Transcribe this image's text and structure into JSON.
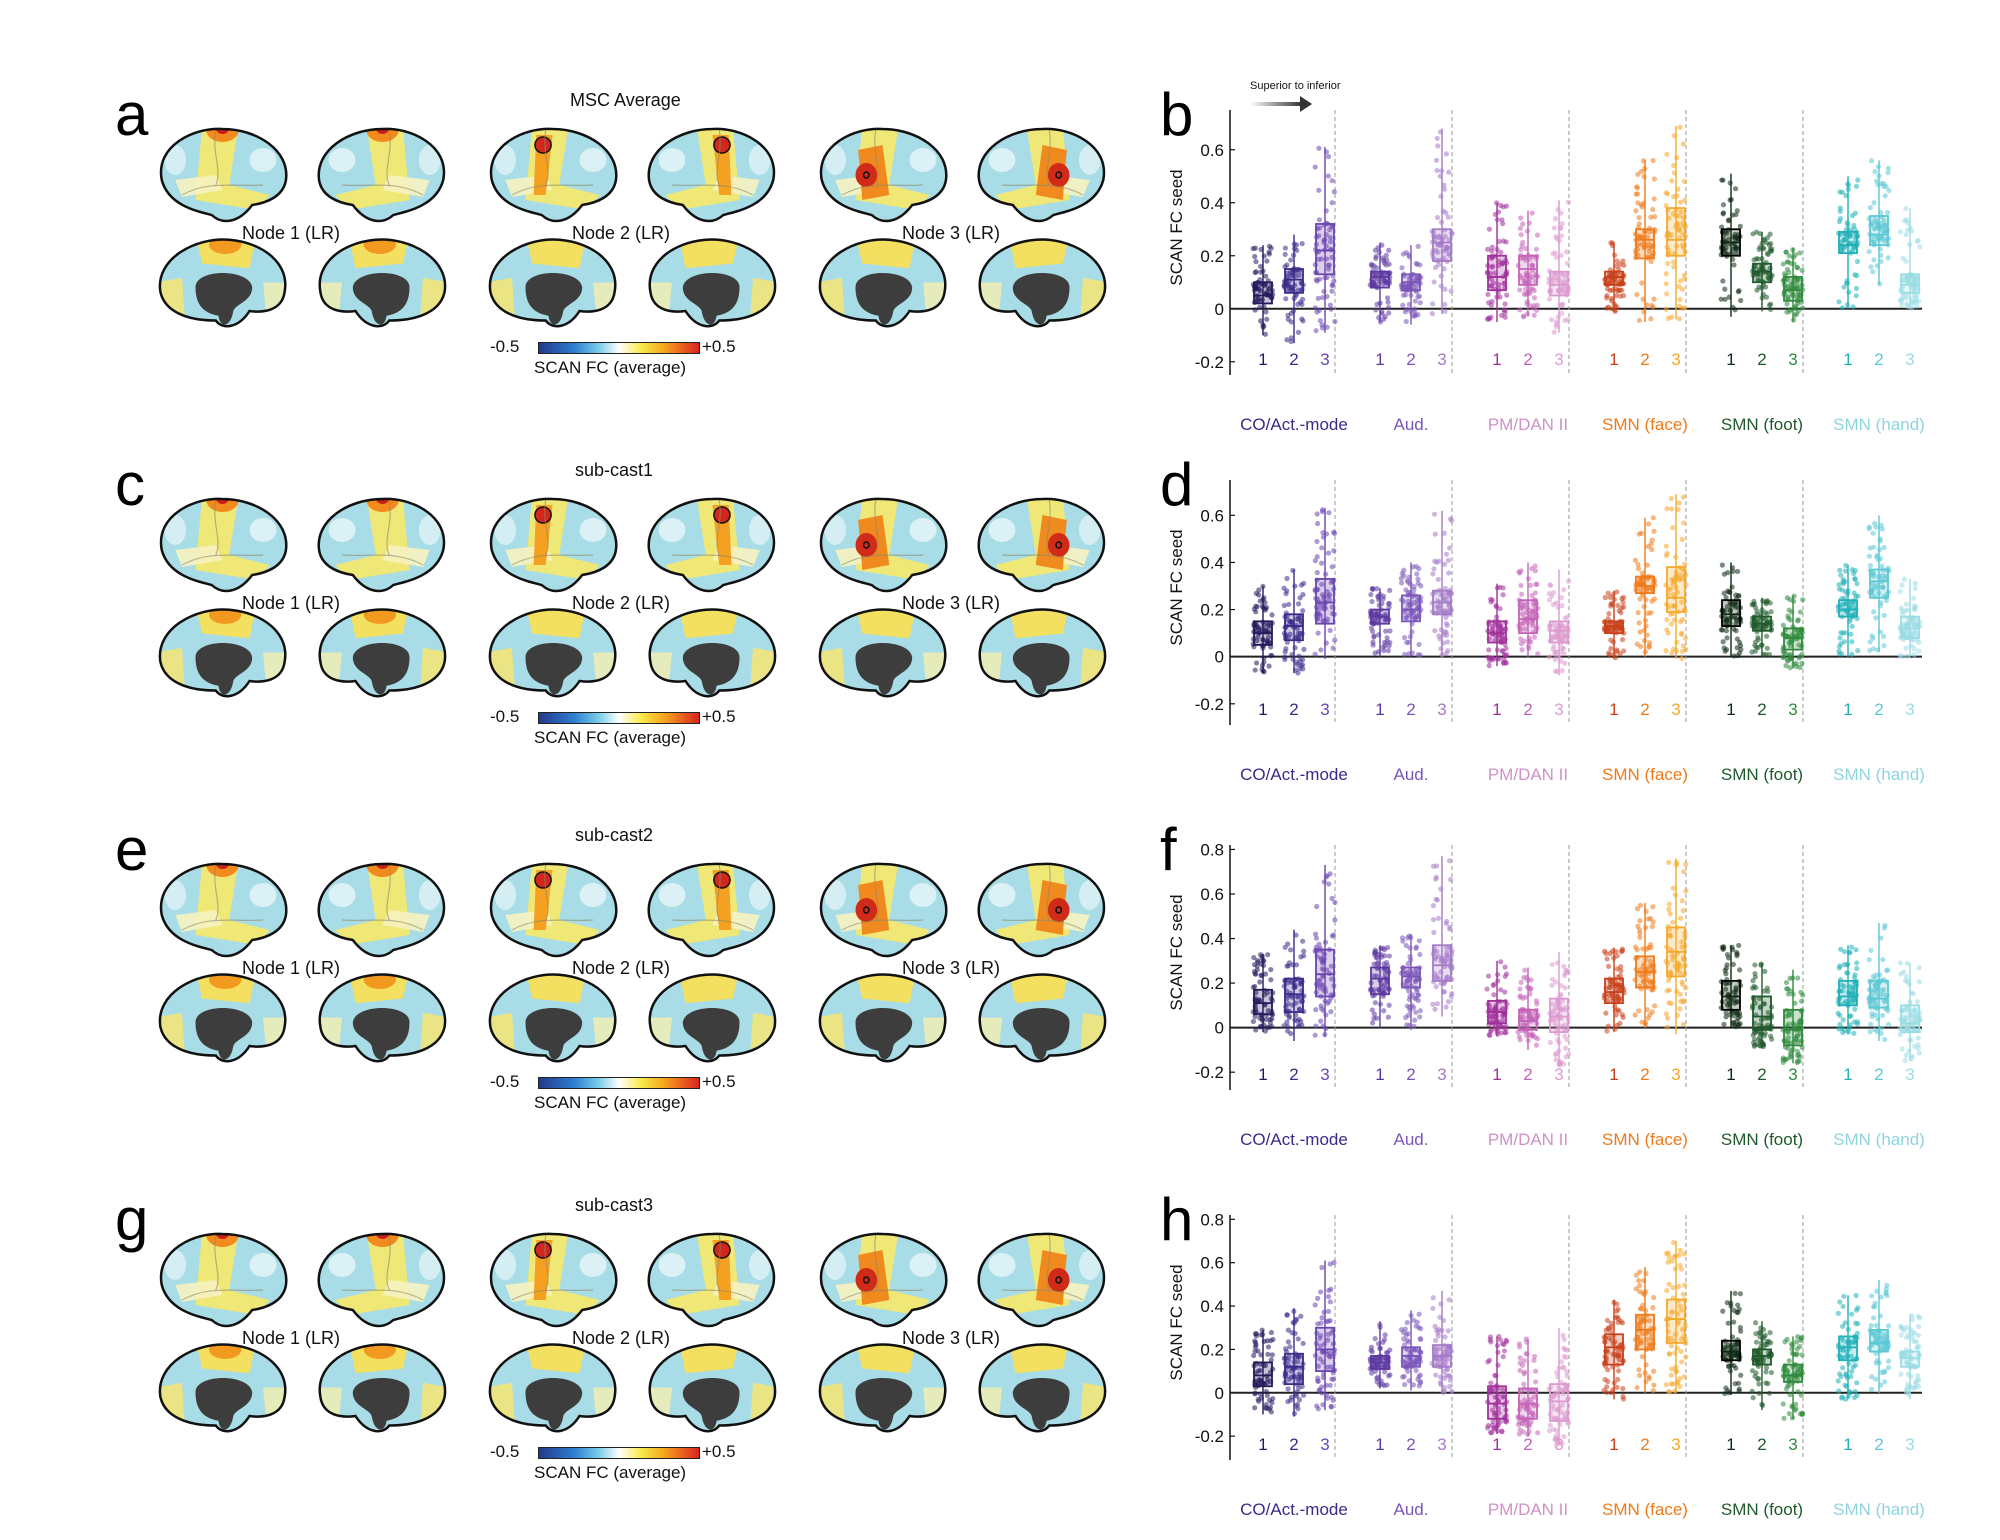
{
  "figure": {
    "panels_brain": [
      {
        "letter": "a",
        "title": "MSC Average",
        "nodes": [
          "Node 1 (LR)",
          "Node 2 (LR)",
          "Node 3 (LR)"
        ]
      },
      {
        "letter": "c",
        "title": "sub-cast1",
        "nodes": [
          "Node 1 (LR)",
          "Node 2 (LR)",
          "Node 3 (LR)"
        ]
      },
      {
        "letter": "e",
        "title": "sub-cast2",
        "nodes": [
          "Node 1 (LR)",
          "Node 2 (LR)",
          "Node 3 (LR)"
        ]
      },
      {
        "letter": "g",
        "title": "sub-cast3",
        "nodes": [
          "Node 1 (LR)",
          "Node 2 (LR)",
          "Node 3 (LR)"
        ]
      }
    ],
    "colorbar": {
      "min": "-0.5",
      "max": "+0.5",
      "title": "SCAN FC (average)"
    },
    "arrow_annotation": "Superior to inferior",
    "colors": {
      "co": [
        "#231a5c",
        "#3a2a8a",
        "#6a45b0"
      ],
      "aud": [
        "#5d38a0",
        "#7a55b8",
        "#a57ac8"
      ],
      "pm": [
        "#a0309a",
        "#c464b8",
        "#dc9ad0"
      ],
      "face": [
        "#c8401a",
        "#ee7a1a",
        "#f5a82a"
      ],
      "foot": [
        "#0f2a14",
        "#1f5a2a",
        "#2e8a3c"
      ],
      "hand": [
        "#20b0b8",
        "#5cc8d4",
        "#9adce4"
      ],
      "label": [
        "#3a2a8a",
        "#7a55b8",
        "#d090c8",
        "#ee7a1a",
        "#1f5a2a",
        "#8ed4e0"
      ]
    }
  },
  "chart_data": [
    {
      "panel": "b",
      "type": "box",
      "ylabel": "SCAN FC seed",
      "ylim": [
        -0.25,
        0.75
      ],
      "yticks": [
        -0.2,
        0,
        0.2,
        0.4,
        0.6
      ],
      "ytick_labels": [
        "-0.2",
        "0",
        "0.2",
        "0.4",
        "0.6"
      ],
      "groups": [
        "CO/Act.-mode",
        "Aud.",
        "PM/DAN II",
        "SMN (face)",
        "SMN (foot)",
        "SMN (hand)"
      ],
      "subcategories": [
        "1",
        "2",
        "3"
      ],
      "boxes": [
        [
          [
            0.02,
            0.05,
            0.1,
            -0.1,
            0.24
          ],
          [
            0.06,
            0.11,
            0.15,
            -0.13,
            0.28
          ],
          [
            0.13,
            0.22,
            0.32,
            -0.09,
            0.61
          ]
        ],
        [
          [
            0.08,
            0.12,
            0.14,
            -0.05,
            0.25
          ],
          [
            0.07,
            0.1,
            0.13,
            -0.06,
            0.24
          ],
          [
            0.18,
            0.25,
            0.3,
            -0.02,
            0.68
          ]
        ],
        [
          [
            0.07,
            0.12,
            0.2,
            -0.05,
            0.4
          ],
          [
            0.09,
            0.15,
            0.2,
            -0.03,
            0.37
          ],
          [
            0.05,
            0.09,
            0.14,
            -0.09,
            0.41
          ]
        ],
        [
          [
            0.09,
            0.12,
            0.14,
            -0.01,
            0.25
          ],
          [
            0.19,
            0.26,
            0.3,
            -0.05,
            0.56
          ],
          [
            0.2,
            0.26,
            0.38,
            -0.04,
            0.69
          ]
        ],
        [
          [
            0.2,
            0.25,
            0.3,
            -0.03,
            0.51
          ],
          [
            0.1,
            0.14,
            0.17,
            -0.01,
            0.29
          ],
          [
            0.03,
            0.07,
            0.12,
            -0.05,
            0.23
          ]
        ],
        [
          [
            0.21,
            0.24,
            0.29,
            0.0,
            0.5
          ],
          [
            0.24,
            0.28,
            0.35,
            0.09,
            0.56
          ],
          [
            0.06,
            0.09,
            0.13,
            0.0,
            0.38
          ]
        ]
      ]
    },
    {
      "panel": "d",
      "type": "box",
      "ylabel": "SCAN FC seed",
      "ylim": [
        -0.29,
        0.75
      ],
      "yticks": [
        -0.2,
        0,
        0.2,
        0.4,
        0.6
      ],
      "ytick_labels": [
        "-0.2",
        "0",
        "0.2",
        "0.4",
        "0.6"
      ],
      "groups": [
        "CO/Act.-mode",
        "Aud.",
        "PM/DAN II",
        "SMN (face)",
        "SMN (foot)",
        "SMN (hand)"
      ],
      "subcategories": [
        "1",
        "2",
        "3"
      ],
      "boxes": [
        [
          [
            0.05,
            0.1,
            0.15,
            -0.07,
            0.3
          ],
          [
            0.07,
            0.13,
            0.18,
            -0.07,
            0.37
          ],
          [
            0.14,
            0.23,
            0.33,
            -0.01,
            0.63
          ]
        ],
        [
          [
            0.14,
            0.17,
            0.2,
            0.0,
            0.29
          ],
          [
            0.15,
            0.2,
            0.26,
            0.0,
            0.4
          ],
          [
            0.18,
            0.23,
            0.28,
            0.0,
            0.62
          ]
        ],
        [
          [
            0.06,
            0.1,
            0.15,
            -0.04,
            0.31
          ],
          [
            0.1,
            0.16,
            0.24,
            0.0,
            0.4
          ],
          [
            0.06,
            0.11,
            0.15,
            -0.08,
            0.37
          ]
        ],
        [
          [
            0.1,
            0.13,
            0.15,
            -0.01,
            0.28
          ],
          [
            0.27,
            0.3,
            0.34,
            0.0,
            0.59
          ],
          [
            0.19,
            0.25,
            0.38,
            -0.01,
            0.69
          ]
        ],
        [
          [
            0.13,
            0.18,
            0.24,
            0.0,
            0.4
          ],
          [
            0.11,
            0.14,
            0.17,
            0.0,
            0.25
          ],
          [
            0.03,
            0.08,
            0.12,
            -0.05,
            0.26
          ]
        ],
        [
          [
            0.17,
            0.2,
            0.24,
            0.0,
            0.39
          ],
          [
            0.25,
            0.32,
            0.37,
            0.02,
            0.6
          ],
          [
            0.08,
            0.12,
            0.17,
            0.0,
            0.33
          ]
        ]
      ]
    },
    {
      "panel": "f",
      "type": "box",
      "ylabel": "SCAN FC seed",
      "ylim": [
        -0.28,
        0.82
      ],
      "yticks": [
        -0.2,
        0,
        0.2,
        0.4,
        0.6,
        0.8
      ],
      "ytick_labels": [
        "-0.2",
        "0",
        "0.2",
        "0.4",
        "0.6",
        "0.8"
      ],
      "groups": [
        "CO/Act.-mode",
        "Aud.",
        "PM/DAN II",
        "SMN (face)",
        "SMN (foot)",
        "SMN (hand)"
      ],
      "subcategories": [
        "1",
        "2",
        "3"
      ],
      "boxes": [
        [
          [
            0.06,
            0.11,
            0.17,
            -0.02,
            0.33
          ],
          [
            0.07,
            0.15,
            0.22,
            -0.06,
            0.44
          ],
          [
            0.14,
            0.24,
            0.35,
            -0.04,
            0.73
          ]
        ],
        [
          [
            0.15,
            0.22,
            0.27,
            0.0,
            0.37
          ],
          [
            0.18,
            0.23,
            0.27,
            -0.01,
            0.42
          ],
          [
            0.21,
            0.28,
            0.37,
            0.05,
            0.77
          ]
        ],
        [
          [
            0.02,
            0.07,
            0.12,
            -0.04,
            0.3
          ],
          [
            -0.01,
            0.03,
            0.08,
            -0.1,
            0.27
          ],
          [
            -0.02,
            0.05,
            0.13,
            -0.17,
            0.34
          ]
        ],
        [
          [
            0.11,
            0.16,
            0.22,
            -0.02,
            0.36
          ],
          [
            0.18,
            0.25,
            0.32,
            0.0,
            0.56
          ],
          [
            0.23,
            0.34,
            0.45,
            -0.03,
            0.76
          ]
        ],
        [
          [
            0.08,
            0.14,
            0.21,
            0.0,
            0.37
          ],
          [
            -0.01,
            0.05,
            0.14,
            -0.09,
            0.29
          ],
          [
            -0.08,
            -0.01,
            0.08,
            -0.16,
            0.26
          ]
        ],
        [
          [
            0.1,
            0.14,
            0.21,
            -0.03,
            0.37
          ],
          [
            0.09,
            0.13,
            0.21,
            -0.06,
            0.47
          ],
          [
            -0.02,
            0.02,
            0.1,
            -0.15,
            0.29
          ]
        ]
      ]
    },
    {
      "panel": "h",
      "type": "box",
      "ylabel": "SCAN FC seed",
      "ylim": [
        -0.31,
        0.82
      ],
      "yticks": [
        -0.2,
        0,
        0.2,
        0.4,
        0.6,
        0.8
      ],
      "ytick_labels": [
        "-0.2",
        "0",
        "0.2",
        "0.4",
        "0.6",
        "0.8"
      ],
      "groups": [
        "CO/Act.-mode",
        "Aud.",
        "PM/DAN II",
        "SMN (face)",
        "SMN (foot)",
        "SMN (hand)"
      ],
      "subcategories": [
        "1",
        "2",
        "3"
      ],
      "boxes": [
        [
          [
            0.03,
            0.08,
            0.14,
            -0.1,
            0.29
          ],
          [
            0.04,
            0.12,
            0.18,
            -0.11,
            0.39
          ],
          [
            0.1,
            0.2,
            0.3,
            -0.08,
            0.61
          ]
        ],
        [
          [
            0.11,
            0.14,
            0.17,
            0.02,
            0.33
          ],
          [
            0.12,
            0.17,
            0.21,
            0.01,
            0.38
          ],
          [
            0.12,
            0.17,
            0.22,
            0.0,
            0.47
          ]
        ],
        [
          [
            -0.12,
            -0.05,
            0.03,
            -0.19,
            0.26
          ],
          [
            -0.12,
            -0.05,
            0.02,
            -0.2,
            0.25
          ],
          [
            -0.13,
            -0.04,
            0.04,
            -0.24,
            0.3
          ]
        ],
        [
          [
            0.13,
            0.21,
            0.27,
            -0.03,
            0.43
          ],
          [
            0.2,
            0.29,
            0.36,
            0.0,
            0.58
          ],
          [
            0.23,
            0.34,
            0.43,
            0.0,
            0.7
          ]
        ],
        [
          [
            0.15,
            0.19,
            0.24,
            -0.01,
            0.47
          ],
          [
            0.13,
            0.17,
            0.2,
            -0.08,
            0.33
          ],
          [
            0.05,
            0.08,
            0.13,
            -0.12,
            0.26
          ]
        ],
        [
          [
            0.15,
            0.21,
            0.26,
            -0.03,
            0.45
          ],
          [
            0.19,
            0.23,
            0.29,
            0.0,
            0.52
          ],
          [
            0.12,
            0.16,
            0.19,
            -0.03,
            0.36
          ]
        ]
      ]
    }
  ]
}
